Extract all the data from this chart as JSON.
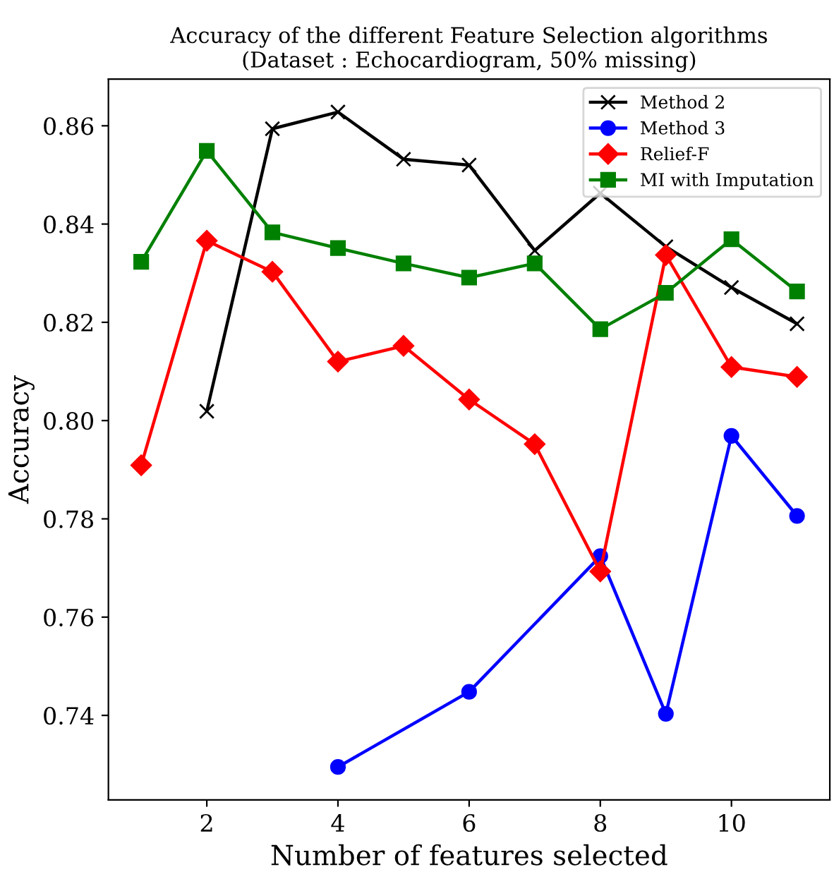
{
  "chart_data": {
    "type": "line",
    "title": "Accuracy of the different Feature Selection algorithms\n(Dataset : Echocardiogram, 50% missing)",
    "xlabel": "Number of features selected",
    "ylabel": "Accuracy",
    "xlim": [
      0.5,
      11.5
    ],
    "xticks": [
      2,
      4,
      6,
      8,
      10
    ],
    "ylim": [
      0.7228,
      0.8695
    ],
    "yticks": [
      {
        "value": 0.74,
        "label": "0.74"
      },
      {
        "value": 0.76,
        "label": "0.76"
      },
      {
        "value": 0.78,
        "label": "0.78"
      },
      {
        "value": 0.8,
        "label": "0.80"
      },
      {
        "value": 0.82,
        "label": "0.82"
      },
      {
        "value": 0.84,
        "label": "0.84"
      },
      {
        "value": 0.86,
        "label": "0.86"
      }
    ],
    "grid": false,
    "legend": "top right",
    "line_style": "solid",
    "series": [
      {
        "name": "Method 2",
        "color": "#000000",
        "marker": "cross",
        "x": [
          2,
          3,
          4,
          5,
          6,
          7,
          8,
          9,
          10,
          11
        ],
        "values": [
          0.8019,
          0.8594,
          0.8628,
          0.8532,
          0.852,
          0.8346,
          0.8463,
          0.8354,
          0.8271,
          0.8197
        ]
      },
      {
        "name": "Method 3",
        "color": "#0000ff",
        "marker": "circle",
        "x": [
          4,
          6,
          8,
          9,
          10,
          11
        ],
        "values": [
          0.7295,
          0.7448,
          0.7724,
          0.7403,
          0.7969,
          0.7806
        ]
      },
      {
        "name": "Relief-F",
        "color": "#ff0000",
        "marker": "diamond",
        "x": [
          1,
          2,
          3,
          4,
          5,
          6,
          7,
          8,
          9,
          10,
          11
        ],
        "values": [
          0.7909,
          0.8366,
          0.8303,
          0.812,
          0.8152,
          0.8043,
          0.7952,
          0.7693,
          0.8337,
          0.8109,
          0.8089
        ]
      },
      {
        "name": "MI with Imputation",
        "color": "#008000",
        "marker": "square",
        "x": [
          1,
          2,
          3,
          4,
          5,
          6,
          7,
          8,
          9,
          10,
          11
        ],
        "values": [
          0.8323,
          0.8549,
          0.8383,
          0.8351,
          0.832,
          0.8291,
          0.832,
          0.8186,
          0.826,
          0.8369,
          0.8263
        ]
      }
    ]
  }
}
